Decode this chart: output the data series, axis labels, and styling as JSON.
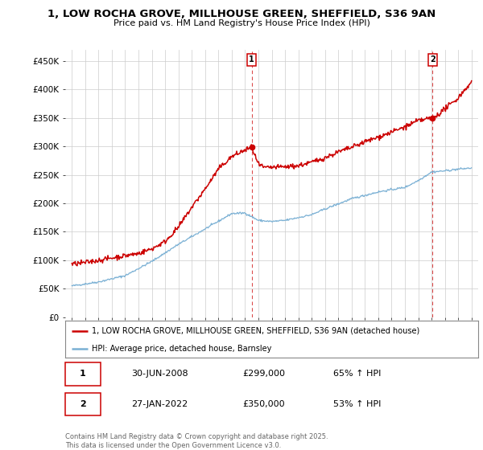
{
  "title": "1, LOW ROCHA GROVE, MILLHOUSE GREEN, SHEFFIELD, S36 9AN",
  "subtitle": "Price paid vs. HM Land Registry's House Price Index (HPI)",
  "title_fontsize": 9.5,
  "subtitle_fontsize": 8,
  "background_color": "#ffffff",
  "plot_bg_color": "#ffffff",
  "grid_color": "#cccccc",
  "red_color": "#cc0000",
  "blue_color": "#7ab0d4",
  "annotation_box_color": "#cc0000",
  "dashed_line_color": "#cc0000",
  "legend_label_red": "1, LOW ROCHA GROVE, MILLHOUSE GREEN, SHEFFIELD, S36 9AN (detached house)",
  "legend_label_blue": "HPI: Average price, detached house, Barnsley",
  "footer": "Contains HM Land Registry data © Crown copyright and database right 2025.\nThis data is licensed under the Open Government Licence v3.0.",
  "annotation1": {
    "label": "1",
    "date_str": "30-JUN-2008",
    "price": "£299,000",
    "pct": "65% ↑ HPI",
    "x_year": 2008.5
  },
  "annotation2": {
    "label": "2",
    "date_str": "27-JAN-2022",
    "price": "£350,000",
    "pct": "53% ↑ HPI",
    "x_year": 2022.08
  },
  "ylim": [
    0,
    470000
  ],
  "yticks": [
    0,
    50000,
    100000,
    150000,
    200000,
    250000,
    300000,
    350000,
    400000,
    450000
  ],
  "ytick_labels": [
    "£0",
    "£50K",
    "£100K",
    "£150K",
    "£200K",
    "£250K",
    "£300K",
    "£350K",
    "£400K",
    "£450K"
  ],
  "xlim": [
    1994.5,
    2025.5
  ],
  "xticks": [
    1995,
    1996,
    1997,
    1998,
    1999,
    2000,
    2001,
    2002,
    2003,
    2004,
    2005,
    2006,
    2007,
    2008,
    2009,
    2010,
    2011,
    2012,
    2013,
    2014,
    2015,
    2016,
    2017,
    2018,
    2019,
    2020,
    2021,
    2022,
    2023,
    2024,
    2025
  ]
}
